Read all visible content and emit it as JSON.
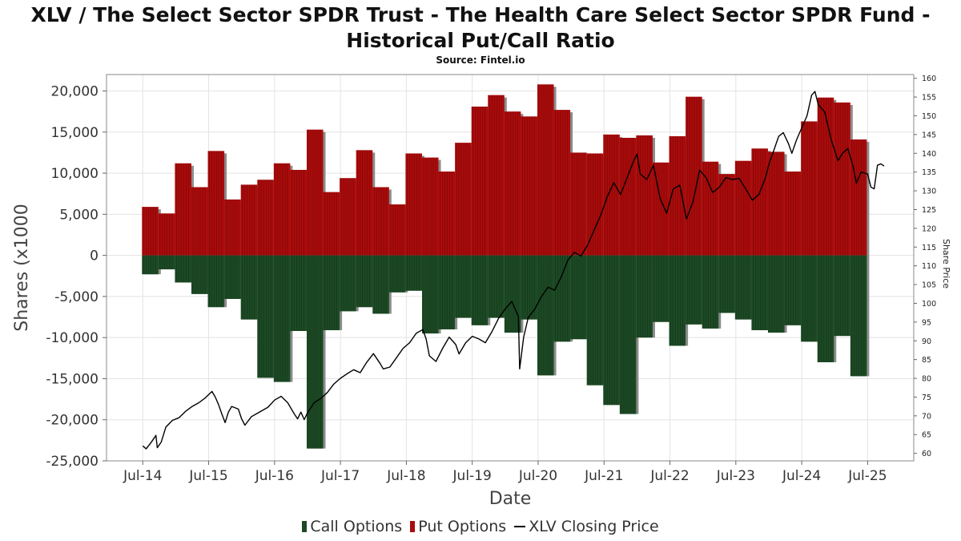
{
  "title_line1": "XLV / The Select Sector SPDR Trust - The Health Care Select Sector SPDR Fund -",
  "title_line2": "Historical Put/Call Ratio",
  "source": "Source: Fintel.io",
  "chart_data": {
    "type": "bar",
    "xlabel": "Date",
    "ylabel": "Shares (x1000",
    "y2label": "Share Price",
    "ylim": [
      -25000,
      22000
    ],
    "y2lim": [
      58,
      161
    ],
    "yticks": [
      20000,
      15000,
      10000,
      5000,
      0,
      -5000,
      -10000,
      -15000,
      -20000,
      -25000
    ],
    "ytick_labels": [
      "20,000",
      "15,000",
      "10,000",
      "5,000",
      "0",
      "-5,000",
      "-10,000",
      "-15,000",
      "-20,000",
      "-25,000"
    ],
    "y2ticks": [
      160,
      155,
      150,
      145,
      140,
      135,
      130,
      125,
      120,
      115,
      110,
      105,
      100,
      95,
      90,
      85,
      80,
      75,
      70,
      65,
      60
    ],
    "xticks": [
      {
        "label": "Jul-14",
        "t": 2014.5
      },
      {
        "label": "Jul-15",
        "t": 2015.5
      },
      {
        "label": "Jul-16",
        "t": 2016.5
      },
      {
        "label": "Jul-17",
        "t": 2017.5
      },
      {
        "label": "Jul-18",
        "t": 2018.5
      },
      {
        "label": "Jul-19",
        "t": 2019.5
      },
      {
        "label": "Jul-20",
        "t": 2020.5
      },
      {
        "label": "Jul-21",
        "t": 2021.5
      },
      {
        "label": "Jul-22",
        "t": 2022.5
      },
      {
        "label": "Jul-23",
        "t": 2023.5
      },
      {
        "label": "Jul-24",
        "t": 2024.5
      },
      {
        "label": "Jul-25",
        "t": 2025.5
      }
    ],
    "xlim": [
      2013.95,
      2026.2
    ],
    "grid": true,
    "legend_position": "bottom",
    "colors": {
      "calls": "#1c4a24",
      "puts": "#aa0b0b",
      "price": "#000000",
      "shadow": "#8c8c8c"
    },
    "series": [
      {
        "name": "Put Options",
        "values": [
          [
            2014.5,
            5900
          ],
          [
            2014.75,
            5100
          ],
          [
            2015.0,
            11200
          ],
          [
            2015.25,
            8300
          ],
          [
            2015.5,
            12700
          ],
          [
            2015.75,
            6800
          ],
          [
            2016.0,
            8600
          ],
          [
            2016.25,
            9200
          ],
          [
            2016.5,
            11200
          ],
          [
            2016.75,
            10400
          ],
          [
            2017.0,
            15300
          ],
          [
            2017.25,
            7700
          ],
          [
            2017.5,
            9400
          ],
          [
            2017.75,
            12800
          ],
          [
            2018.0,
            8300
          ],
          [
            2018.25,
            6200
          ],
          [
            2018.5,
            12400
          ],
          [
            2018.75,
            11900
          ],
          [
            2019.0,
            10200
          ],
          [
            2019.25,
            13700
          ],
          [
            2019.5,
            18100
          ],
          [
            2019.75,
            19500
          ],
          [
            2020.0,
            17500
          ],
          [
            2020.25,
            16900
          ],
          [
            2020.5,
            20800
          ],
          [
            2020.75,
            17700
          ],
          [
            2021.0,
            12500
          ],
          [
            2021.25,
            12400
          ],
          [
            2021.5,
            14700
          ],
          [
            2021.75,
            14300
          ],
          [
            2022.0,
            14600
          ],
          [
            2022.25,
            11300
          ],
          [
            2022.5,
            14500
          ],
          [
            2022.75,
            19300
          ],
          [
            2023.0,
            11400
          ],
          [
            2023.25,
            9900
          ],
          [
            2023.5,
            11500
          ],
          [
            2023.75,
            13000
          ],
          [
            2024.0,
            12600
          ],
          [
            2024.25,
            10200
          ],
          [
            2024.5,
            16300
          ],
          [
            2024.75,
            19200
          ],
          [
            2025.0,
            18600
          ],
          [
            2025.25,
            14100
          ]
        ]
      },
      {
        "name": "Call Options",
        "values": [
          [
            2014.5,
            -2300
          ],
          [
            2014.75,
            -1700
          ],
          [
            2015.0,
            -3300
          ],
          [
            2015.25,
            -4700
          ],
          [
            2015.5,
            -6300
          ],
          [
            2015.75,
            -5300
          ],
          [
            2016.0,
            -7800
          ],
          [
            2016.25,
            -14900
          ],
          [
            2016.5,
            -15400
          ],
          [
            2016.75,
            -9200
          ],
          [
            2017.0,
            -23500
          ],
          [
            2017.25,
            -9100
          ],
          [
            2017.5,
            -6800
          ],
          [
            2017.75,
            -6300
          ],
          [
            2018.0,
            -7100
          ],
          [
            2018.25,
            -4500
          ],
          [
            2018.5,
            -4300
          ],
          [
            2018.75,
            -9500
          ],
          [
            2019.0,
            -9000
          ],
          [
            2019.25,
            -7600
          ],
          [
            2019.5,
            -8500
          ],
          [
            2019.75,
            -7600
          ],
          [
            2020.0,
            -9400
          ],
          [
            2020.25,
            -7800
          ],
          [
            2020.5,
            -14600
          ],
          [
            2020.75,
            -10500
          ],
          [
            2021.0,
            -10200
          ],
          [
            2021.25,
            -15800
          ],
          [
            2021.5,
            -18200
          ],
          [
            2021.75,
            -19300
          ],
          [
            2022.0,
            -10000
          ],
          [
            2022.25,
            -8100
          ],
          [
            2022.5,
            -11000
          ],
          [
            2022.75,
            -8400
          ],
          [
            2023.0,
            -8900
          ],
          [
            2023.25,
            -7000
          ],
          [
            2023.5,
            -7800
          ],
          [
            2023.75,
            -9100
          ],
          [
            2024.0,
            -9400
          ],
          [
            2024.25,
            -8500
          ],
          [
            2024.5,
            -10500
          ],
          [
            2024.75,
            -13000
          ],
          [
            2025.0,
            -9800
          ],
          [
            2025.25,
            -14700
          ]
        ]
      },
      {
        "name": "XLV Closing Price",
        "axis": "right",
        "values": [
          [
            2014.5,
            62
          ],
          [
            2014.55,
            61.2
          ],
          [
            2014.6,
            62.3
          ],
          [
            2014.65,
            63.5
          ],
          [
            2014.7,
            64.8
          ],
          [
            2014.72,
            61.5
          ],
          [
            2014.78,
            63
          ],
          [
            2014.85,
            67
          ],
          [
            2014.95,
            68.8
          ],
          [
            2015.05,
            69.5
          ],
          [
            2015.15,
            71.2
          ],
          [
            2015.25,
            72.5
          ],
          [
            2015.35,
            73.5
          ],
          [
            2015.45,
            74.8
          ],
          [
            2015.55,
            76.5
          ],
          [
            2015.6,
            75
          ],
          [
            2015.65,
            73
          ],
          [
            2015.7,
            70.5
          ],
          [
            2015.75,
            68.2
          ],
          [
            2015.8,
            71
          ],
          [
            2015.85,
            72.5
          ],
          [
            2015.95,
            71.8
          ],
          [
            2016.0,
            69.2
          ],
          [
            2016.05,
            67.5
          ],
          [
            2016.15,
            69.8
          ],
          [
            2016.25,
            70.8
          ],
          [
            2016.4,
            72.3
          ],
          [
            2016.5,
            74.2
          ],
          [
            2016.6,
            75.2
          ],
          [
            2016.7,
            73.5
          ],
          [
            2016.8,
            70.5
          ],
          [
            2016.85,
            69.2
          ],
          [
            2016.9,
            71
          ],
          [
            2016.95,
            69
          ],
          [
            2017.0,
            70.8
          ],
          [
            2017.1,
            73.5
          ],
          [
            2017.2,
            74.6
          ],
          [
            2017.3,
            76.2
          ],
          [
            2017.4,
            78.5
          ],
          [
            2017.5,
            80
          ],
          [
            2017.6,
            81.2
          ],
          [
            2017.7,
            82.3
          ],
          [
            2017.8,
            81.5
          ],
          [
            2017.9,
            84.3
          ],
          [
            2018.0,
            86.6
          ],
          [
            2018.1,
            84
          ],
          [
            2018.15,
            82.5
          ],
          [
            2018.25,
            83
          ],
          [
            2018.35,
            85.5
          ],
          [
            2018.45,
            88
          ],
          [
            2018.55,
            89.5
          ],
          [
            2018.65,
            92
          ],
          [
            2018.75,
            93
          ],
          [
            2018.8,
            90.5
          ],
          [
            2018.85,
            86
          ],
          [
            2018.95,
            84.5
          ],
          [
            2019.05,
            88
          ],
          [
            2019.15,
            91
          ],
          [
            2019.25,
            89
          ],
          [
            2019.3,
            86.5
          ],
          [
            2019.4,
            89.5
          ],
          [
            2019.5,
            91.2
          ],
          [
            2019.6,
            90.5
          ],
          [
            2019.7,
            89.5
          ],
          [
            2019.8,
            92.5
          ],
          [
            2019.9,
            96
          ],
          [
            2020.0,
            98.5
          ],
          [
            2020.1,
            100.5
          ],
          [
            2020.2,
            96.5
          ],
          [
            2020.22,
            82.5
          ],
          [
            2020.28,
            91
          ],
          [
            2020.35,
            96.2
          ],
          [
            2020.45,
            98.5
          ],
          [
            2020.55,
            101.8
          ],
          [
            2020.65,
            104.3
          ],
          [
            2020.75,
            103.5
          ],
          [
            2020.85,
            107
          ],
          [
            2020.95,
            111.5
          ],
          [
            2021.05,
            113.6
          ],
          [
            2021.15,
            112.6
          ],
          [
            2021.25,
            115.5
          ],
          [
            2021.35,
            119.5
          ],
          [
            2021.45,
            123.5
          ],
          [
            2021.55,
            128.5
          ],
          [
            2021.65,
            132.2
          ],
          [
            2021.75,
            129
          ],
          [
            2021.85,
            133.5
          ],
          [
            2021.95,
            138
          ],
          [
            2022.0,
            139.8
          ],
          [
            2022.05,
            134.5
          ],
          [
            2022.15,
            133
          ],
          [
            2022.25,
            136.8
          ],
          [
            2022.35,
            128
          ],
          [
            2022.45,
            124
          ],
          [
            2022.55,
            130.5
          ],
          [
            2022.65,
            131.5
          ],
          [
            2022.75,
            122.5
          ],
          [
            2022.85,
            127
          ],
          [
            2022.95,
            135.5
          ],
          [
            2023.05,
            133.5
          ],
          [
            2023.15,
            129.5
          ],
          [
            2023.25,
            131
          ],
          [
            2023.35,
            133.5
          ],
          [
            2023.45,
            133
          ],
          [
            2023.55,
            133.3
          ],
          [
            2023.65,
            130.5
          ],
          [
            2023.75,
            127.5
          ],
          [
            2023.85,
            129
          ],
          [
            2023.95,
            133.5
          ],
          [
            2024.0,
            137
          ],
          [
            2024.08,
            141
          ],
          [
            2024.15,
            144.5
          ],
          [
            2024.22,
            145.5
          ],
          [
            2024.3,
            142.5
          ],
          [
            2024.35,
            140
          ],
          [
            2024.42,
            143.5
          ],
          [
            2024.5,
            146.8
          ],
          [
            2024.58,
            150
          ],
          [
            2024.65,
            155.5
          ],
          [
            2024.7,
            156.5
          ],
          [
            2024.75,
            153
          ],
          [
            2024.85,
            151
          ],
          [
            2024.95,
            143.5
          ],
          [
            2025.05,
            138
          ],
          [
            2025.12,
            140
          ],
          [
            2025.2,
            141.3
          ],
          [
            2025.28,
            136.5
          ],
          [
            2025.33,
            132
          ],
          [
            2025.4,
            135
          ],
          [
            2025.5,
            134.5
          ],
          [
            2025.55,
            131
          ],
          [
            2025.6,
            130.5
          ],
          [
            2025.65,
            136.8
          ],
          [
            2025.7,
            137.2
          ],
          [
            2025.75,
            136.6
          ]
        ]
      }
    ]
  },
  "legend": {
    "calls_label": "Call Options",
    "puts_label": "Put Options",
    "price_label": "XLV Closing Price"
  }
}
